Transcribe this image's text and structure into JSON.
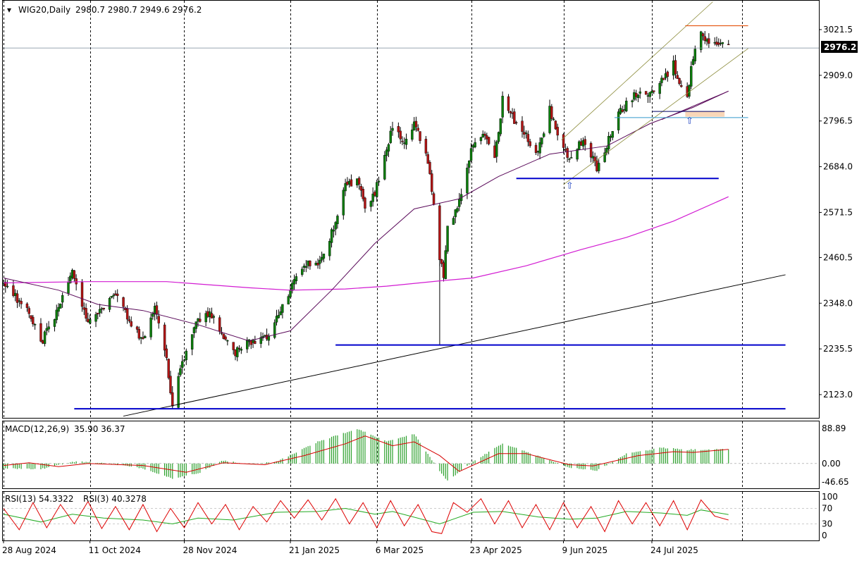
{
  "colors": {
    "bull_candle": "#0b7d0b",
    "bear_candle": "#b21414",
    "ma_short": "#5a0a5a",
    "ma_long": "#d21bd2",
    "support_line": "#0000cc",
    "trend_line": "#000000",
    "channel_line": "#8b8b3a",
    "macd_hist": "#2ca02c",
    "macd_signal": "#d60000",
    "rsi_long": "#22aa22",
    "rsi_short": "#dd0000",
    "resistance_line": "#e65c1a",
    "highlight_box": "#f9d7b8",
    "arrow": "#1b3fbf"
  },
  "chart_data": [
    {
      "type": "candlestick",
      "header": {
        "symbol_tf": "WIG20,Daily",
        "ohlc": "2980.7 2980.7 2949.6 2976.2"
      },
      "current_price_label": "2976.2",
      "ylim": [
        2050,
        3080
      ],
      "y_ticks": [
        "3021.5",
        "2909.0",
        "2796.5",
        "2684.0",
        "2571.5",
        "2460.5",
        "2348.0",
        "2235.5",
        "2123.0"
      ],
      "x_ticks": [
        "28 Aug 2024",
        "11 Oct 2024",
        "28 Nov 2024",
        "21 Jan 2025",
        "6 Mar 2025",
        "23 Apr 2025",
        "9 Jun 2025",
        "24 Jul 2025"
      ],
      "close_path": [
        {
          "d": "2024-08-28",
          "v": 2395
        },
        {
          "d": "2024-09-10",
          "v": 2325
        },
        {
          "d": "2024-09-16",
          "v": 2250
        },
        {
          "d": "2024-09-25",
          "v": 2335
        },
        {
          "d": "2024-10-02",
          "v": 2420
        },
        {
          "d": "2024-10-10",
          "v": 2300
        },
        {
          "d": "2024-10-18",
          "v": 2340
        },
        {
          "d": "2024-10-24",
          "v": 2370
        },
        {
          "d": "2024-10-31",
          "v": 2305
        },
        {
          "d": "2024-11-07",
          "v": 2250
        },
        {
          "d": "2024-11-13",
          "v": 2340
        },
        {
          "d": "2024-11-19",
          "v": 2205
        },
        {
          "d": "2024-11-22",
          "v": 2100
        },
        {
          "d": "2024-11-29",
          "v": 2235
        },
        {
          "d": "2024-12-05",
          "v": 2305
        },
        {
          "d": "2024-12-11",
          "v": 2330
        },
        {
          "d": "2024-12-18",
          "v": 2270
        },
        {
          "d": "2024-12-23",
          "v": 2225
        },
        {
          "d": "2024-12-31",
          "v": 2255
        },
        {
          "d": "2025-01-08",
          "v": 2260
        },
        {
          "d": "2025-01-14",
          "v": 2310
        },
        {
          "d": "2025-01-21",
          "v": 2380
        },
        {
          "d": "2025-01-28",
          "v": 2445
        },
        {
          "d": "2025-02-04",
          "v": 2435
        },
        {
          "d": "2025-02-11",
          "v": 2520
        },
        {
          "d": "2025-02-18",
          "v": 2640
        },
        {
          "d": "2025-02-24",
          "v": 2645
        },
        {
          "d": "2025-02-28",
          "v": 2590
        },
        {
          "d": "2025-03-05",
          "v": 2620
        },
        {
          "d": "2025-03-11",
          "v": 2730
        },
        {
          "d": "2025-03-14",
          "v": 2780
        },
        {
          "d": "2025-03-20",
          "v": 2745
        },
        {
          "d": "2025-03-25",
          "v": 2790
        },
        {
          "d": "2025-04-01",
          "v": 2700
        },
        {
          "d": "2025-04-04",
          "v": 2600
        },
        {
          "d": "2025-04-07",
          "v": 2455
        },
        {
          "d": "2025-04-09",
          "v": 2420
        },
        {
          "d": "2025-04-11",
          "v": 2530
        },
        {
          "d": "2025-04-17",
          "v": 2600
        },
        {
          "d": "2025-04-24",
          "v": 2740
        },
        {
          "d": "2025-04-30",
          "v": 2760
        },
        {
          "d": "2025-05-05",
          "v": 2700
        },
        {
          "d": "2025-05-09",
          "v": 2850
        },
        {
          "d": "2025-05-15",
          "v": 2800
        },
        {
          "d": "2025-05-21",
          "v": 2760
        },
        {
          "d": "2025-05-27",
          "v": 2715
        },
        {
          "d": "2025-06-02",
          "v": 2830
        },
        {
          "d": "2025-06-06",
          "v": 2760
        },
        {
          "d": "2025-06-12",
          "v": 2705
        },
        {
          "d": "2025-06-18",
          "v": 2745
        },
        {
          "d": "2025-06-24",
          "v": 2700
        },
        {
          "d": "2025-06-26",
          "v": 2680
        },
        {
          "d": "2025-07-01",
          "v": 2740
        },
        {
          "d": "2025-07-07",
          "v": 2810
        },
        {
          "d": "2025-07-11",
          "v": 2840
        },
        {
          "d": "2025-07-17",
          "v": 2870
        },
        {
          "d": "2025-07-23",
          "v": 2865
        },
        {
          "d": "2025-07-29",
          "v": 2895
        },
        {
          "d": "2025-08-04",
          "v": 2935
        },
        {
          "d": "2025-08-07",
          "v": 2880
        },
        {
          "d": "2025-08-11",
          "v": 2850
        },
        {
          "d": "2025-08-14",
          "v": 2955
        },
        {
          "d": "2025-08-18",
          "v": 3025
        },
        {
          "d": "2025-08-21",
          "v": 2990
        },
        {
          "d": "2025-08-26",
          "v": 2985
        },
        {
          "d": "2025-09-01",
          "v": 2976
        }
      ],
      "ma_short_path": [
        {
          "d": "2024-08-28",
          "v": 2410
        },
        {
          "d": "2024-09-25",
          "v": 2380
        },
        {
          "d": "2024-10-15",
          "v": 2345
        },
        {
          "d": "2024-11-07",
          "v": 2330
        },
        {
          "d": "2024-12-05",
          "v": 2295
        },
        {
          "d": "2024-12-31",
          "v": 2255
        },
        {
          "d": "2025-01-21",
          "v": 2280
        },
        {
          "d": "2025-02-11",
          "v": 2380
        },
        {
          "d": "2025-03-05",
          "v": 2495
        },
        {
          "d": "2025-03-25",
          "v": 2580
        },
        {
          "d": "2025-04-17",
          "v": 2605
        },
        {
          "d": "2025-05-07",
          "v": 2660
        },
        {
          "d": "2025-06-02",
          "v": 2715
        },
        {
          "d": "2025-07-01",
          "v": 2735
        },
        {
          "d": "2025-07-23",
          "v": 2790
        },
        {
          "d": "2025-08-14",
          "v": 2830
        },
        {
          "d": "2025-09-01",
          "v": 2870
        }
      ],
      "ma_long_path": [
        {
          "d": "2024-08-28",
          "v": 2398
        },
        {
          "d": "2024-10-10",
          "v": 2401
        },
        {
          "d": "2024-11-19",
          "v": 2401
        },
        {
          "d": "2024-12-31",
          "v": 2386
        },
        {
          "d": "2025-01-21",
          "v": 2380
        },
        {
          "d": "2025-02-18",
          "v": 2383
        },
        {
          "d": "2025-03-11",
          "v": 2390
        },
        {
          "d": "2025-04-07",
          "v": 2403
        },
        {
          "d": "2025-04-24",
          "v": 2410
        },
        {
          "d": "2025-05-21",
          "v": 2440
        },
        {
          "d": "2025-06-18",
          "v": 2480
        },
        {
          "d": "2025-07-11",
          "v": 2510
        },
        {
          "d": "2025-08-04",
          "v": 2550
        },
        {
          "d": "2025-09-01",
          "v": 2610
        }
      ],
      "horizontal_levels": [
        {
          "name": "support-2090",
          "v": 2088,
          "from": "2024-10-03",
          "to": "2025-09-30"
        },
        {
          "name": "support-2245",
          "v": 2245,
          "from": "2025-02-13",
          "to": "2025-09-30"
        },
        {
          "name": "support-2655",
          "v": 2655,
          "from": "2025-05-16",
          "to": "2025-08-27"
        },
        {
          "name": "level-2820",
          "v": 2820,
          "from": "2025-07-24",
          "to": "2025-08-30"
        },
        {
          "name": "level-2805",
          "v": 2805,
          "from": "2025-07-05",
          "to": "2025-09-11"
        },
        {
          "name": "resistance-3031",
          "v": 3031,
          "from": "2025-08-10",
          "to": "2025-09-11"
        }
      ],
      "trend_line": {
        "from": {
          "d": "2024-10-28",
          "v": 2070
        },
        "to": {
          "d": "2025-09-30",
          "v": 2418
        }
      },
      "channel_lines": [
        {
          "from": {
            "d": "2025-06-08",
            "v": 2750
          },
          "to": {
            "d": "2025-08-24",
            "v": 3090
          }
        },
        {
          "from": {
            "d": "2025-06-09",
            "v": 2640
          },
          "to": {
            "d": "2025-09-11",
            "v": 2975
          }
        }
      ],
      "short_line": {
        "from": {
          "d": "2025-07-29",
          "v": 2800
        },
        "to": {
          "d": "2025-09-01",
          "v": 2870
        }
      },
      "highlight_box": {
        "from": "2025-08-10",
        "to": "2025-08-30",
        "top": 2820,
        "bottom": 2807
      },
      "arrows": [
        {
          "d": "2025-06-12",
          "v": 2630
        },
        {
          "d": "2025-08-12",
          "v": 2790
        }
      ]
    },
    {
      "type": "bar",
      "title": "MACD(12,26,9)",
      "values_text": "35.90 36.37",
      "y_ticks": [
        "88.89",
        "0.00",
        "-46.65"
      ],
      "ylim": [
        -50,
        100
      ],
      "histogram_path": [
        {
          "d": "2024-08-28",
          "v": -12
        },
        {
          "d": "2024-09-16",
          "v": -14
        },
        {
          "d": "2024-10-02",
          "v": 5
        },
        {
          "d": "2024-10-18",
          "v": 2
        },
        {
          "d": "2024-11-07",
          "v": -12
        },
        {
          "d": "2024-11-22",
          "v": -38
        },
        {
          "d": "2024-12-05",
          "v": -25
        },
        {
          "d": "2024-12-18",
          "v": 8
        },
        {
          "d": "2024-12-31",
          "v": -3
        },
        {
          "d": "2025-01-14",
          "v": 5
        },
        {
          "d": "2025-02-04",
          "v": 55
        },
        {
          "d": "2025-02-24",
          "v": 88
        },
        {
          "d": "2025-03-11",
          "v": 55
        },
        {
          "d": "2025-03-25",
          "v": 75
        },
        {
          "d": "2025-04-07",
          "v": -20
        },
        {
          "d": "2025-04-11",
          "v": -44
        },
        {
          "d": "2025-04-24",
          "v": 5
        },
        {
          "d": "2025-05-09",
          "v": 50
        },
        {
          "d": "2025-05-21",
          "v": 30
        },
        {
          "d": "2025-06-12",
          "v": -10
        },
        {
          "d": "2025-06-26",
          "v": -18
        },
        {
          "d": "2025-07-11",
          "v": 25
        },
        {
          "d": "2025-07-29",
          "v": 40
        },
        {
          "d": "2025-08-11",
          "v": 35
        },
        {
          "d": "2025-09-01",
          "v": 36
        }
      ],
      "signal_path": [
        {
          "d": "2024-08-28",
          "v": -5
        },
        {
          "d": "2024-09-10",
          "v": 2
        },
        {
          "d": "2024-09-25",
          "v": -8
        },
        {
          "d": "2024-10-10",
          "v": 0
        },
        {
          "d": "2024-11-07",
          "v": -5
        },
        {
          "d": "2024-11-29",
          "v": -22
        },
        {
          "d": "2024-12-18",
          "v": 2
        },
        {
          "d": "2025-01-08",
          "v": -3
        },
        {
          "d": "2025-01-28",
          "v": 20
        },
        {
          "d": "2025-02-18",
          "v": 50
        },
        {
          "d": "2025-02-28",
          "v": 70
        },
        {
          "d": "2025-03-14",
          "v": 45
        },
        {
          "d": "2025-03-25",
          "v": 55
        },
        {
          "d": "2025-04-07",
          "v": 20
        },
        {
          "d": "2025-04-17",
          "v": -20
        },
        {
          "d": "2025-05-07",
          "v": 25
        },
        {
          "d": "2025-05-21",
          "v": 25
        },
        {
          "d": "2025-06-12",
          "v": -3
        },
        {
          "d": "2025-06-24",
          "v": -6
        },
        {
          "d": "2025-07-17",
          "v": 20
        },
        {
          "d": "2025-08-04",
          "v": 30
        },
        {
          "d": "2025-08-14",
          "v": 28
        },
        {
          "d": "2025-09-01",
          "v": 36
        }
      ]
    },
    {
      "type": "line",
      "title": "RSI(13) 54.3322",
      "title2": "RSI(3) 40.3278",
      "y_ticks": [
        "100",
        "70",
        "30",
        "0"
      ],
      "ylim": [
        0,
        100
      ],
      "levels": [
        70,
        30
      ],
      "rsi13_path": [
        {
          "d": "2024-08-28",
          "v": 55
        },
        {
          "d": "2024-09-16",
          "v": 35
        },
        {
          "d": "2024-10-02",
          "v": 55
        },
        {
          "d": "2024-10-18",
          "v": 45
        },
        {
          "d": "2024-11-07",
          "v": 40
        },
        {
          "d": "2024-11-22",
          "v": 30
        },
        {
          "d": "2024-12-05",
          "v": 45
        },
        {
          "d": "2024-12-23",
          "v": 40
        },
        {
          "d": "2025-01-14",
          "v": 60
        },
        {
          "d": "2025-02-04",
          "v": 62
        },
        {
          "d": "2025-02-18",
          "v": 70
        },
        {
          "d": "2025-03-05",
          "v": 55
        },
        {
          "d": "2025-03-14",
          "v": 62
        },
        {
          "d": "2025-04-07",
          "v": 30
        },
        {
          "d": "2025-04-24",
          "v": 60
        },
        {
          "d": "2025-05-09",
          "v": 62
        },
        {
          "d": "2025-05-27",
          "v": 48
        },
        {
          "d": "2025-06-12",
          "v": 42
        },
        {
          "d": "2025-06-26",
          "v": 45
        },
        {
          "d": "2025-07-11",
          "v": 62
        },
        {
          "d": "2025-07-29",
          "v": 58
        },
        {
          "d": "2025-08-11",
          "v": 52
        },
        {
          "d": "2025-08-18",
          "v": 66
        },
        {
          "d": "2025-09-01",
          "v": 54
        }
      ],
      "rsi3_path": [
        {
          "d": "2024-08-28",
          "v": 70
        },
        {
          "d": "2024-09-05",
          "v": 15
        },
        {
          "d": "2024-09-12",
          "v": 85
        },
        {
          "d": "2024-09-19",
          "v": 20
        },
        {
          "d": "2024-09-26",
          "v": 80
        },
        {
          "d": "2024-10-03",
          "v": 30
        },
        {
          "d": "2024-10-10",
          "v": 88
        },
        {
          "d": "2024-10-17",
          "v": 18
        },
        {
          "d": "2024-10-24",
          "v": 75
        },
        {
          "d": "2024-10-31",
          "v": 15
        },
        {
          "d": "2024-11-07",
          "v": 80
        },
        {
          "d": "2024-11-14",
          "v": 10
        },
        {
          "d": "2024-11-21",
          "v": 70
        },
        {
          "d": "2024-11-28",
          "v": 20
        },
        {
          "d": "2024-12-05",
          "v": 85
        },
        {
          "d": "2024-12-12",
          "v": 30
        },
        {
          "d": "2024-12-19",
          "v": 80
        },
        {
          "d": "2024-12-26",
          "v": 15
        },
        {
          "d": "2025-01-02",
          "v": 75
        },
        {
          "d": "2025-01-09",
          "v": 35
        },
        {
          "d": "2025-01-16",
          "v": 90
        },
        {
          "d": "2025-01-23",
          "v": 45
        },
        {
          "d": "2025-01-30",
          "v": 92
        },
        {
          "d": "2025-02-06",
          "v": 40
        },
        {
          "d": "2025-02-13",
          "v": 95
        },
        {
          "d": "2025-02-20",
          "v": 30
        },
        {
          "d": "2025-02-27",
          "v": 85
        },
        {
          "d": "2025-03-06",
          "v": 20
        },
        {
          "d": "2025-03-13",
          "v": 90
        },
        {
          "d": "2025-03-20",
          "v": 25
        },
        {
          "d": "2025-03-27",
          "v": 80
        },
        {
          "d": "2025-04-03",
          "v": 10
        },
        {
          "d": "2025-04-08",
          "v": 5
        },
        {
          "d": "2025-04-14",
          "v": 85
        },
        {
          "d": "2025-04-21",
          "v": 60
        },
        {
          "d": "2025-04-28",
          "v": 95
        },
        {
          "d": "2025-05-05",
          "v": 30
        },
        {
          "d": "2025-05-12",
          "v": 90
        },
        {
          "d": "2025-05-19",
          "v": 20
        },
        {
          "d": "2025-05-26",
          "v": 80
        },
        {
          "d": "2025-06-02",
          "v": 15
        },
        {
          "d": "2025-06-09",
          "v": 85
        },
        {
          "d": "2025-06-16",
          "v": 20
        },
        {
          "d": "2025-06-23",
          "v": 75
        },
        {
          "d": "2025-06-30",
          "v": 10
        },
        {
          "d": "2025-07-07",
          "v": 90
        },
        {
          "d": "2025-07-14",
          "v": 30
        },
        {
          "d": "2025-07-21",
          "v": 85
        },
        {
          "d": "2025-07-28",
          "v": 25
        },
        {
          "d": "2025-08-04",
          "v": 90
        },
        {
          "d": "2025-08-11",
          "v": 15
        },
        {
          "d": "2025-08-18",
          "v": 92
        },
        {
          "d": "2025-08-25",
          "v": 50
        },
        {
          "d": "2025-09-01",
          "v": 40
        }
      ]
    }
  ]
}
